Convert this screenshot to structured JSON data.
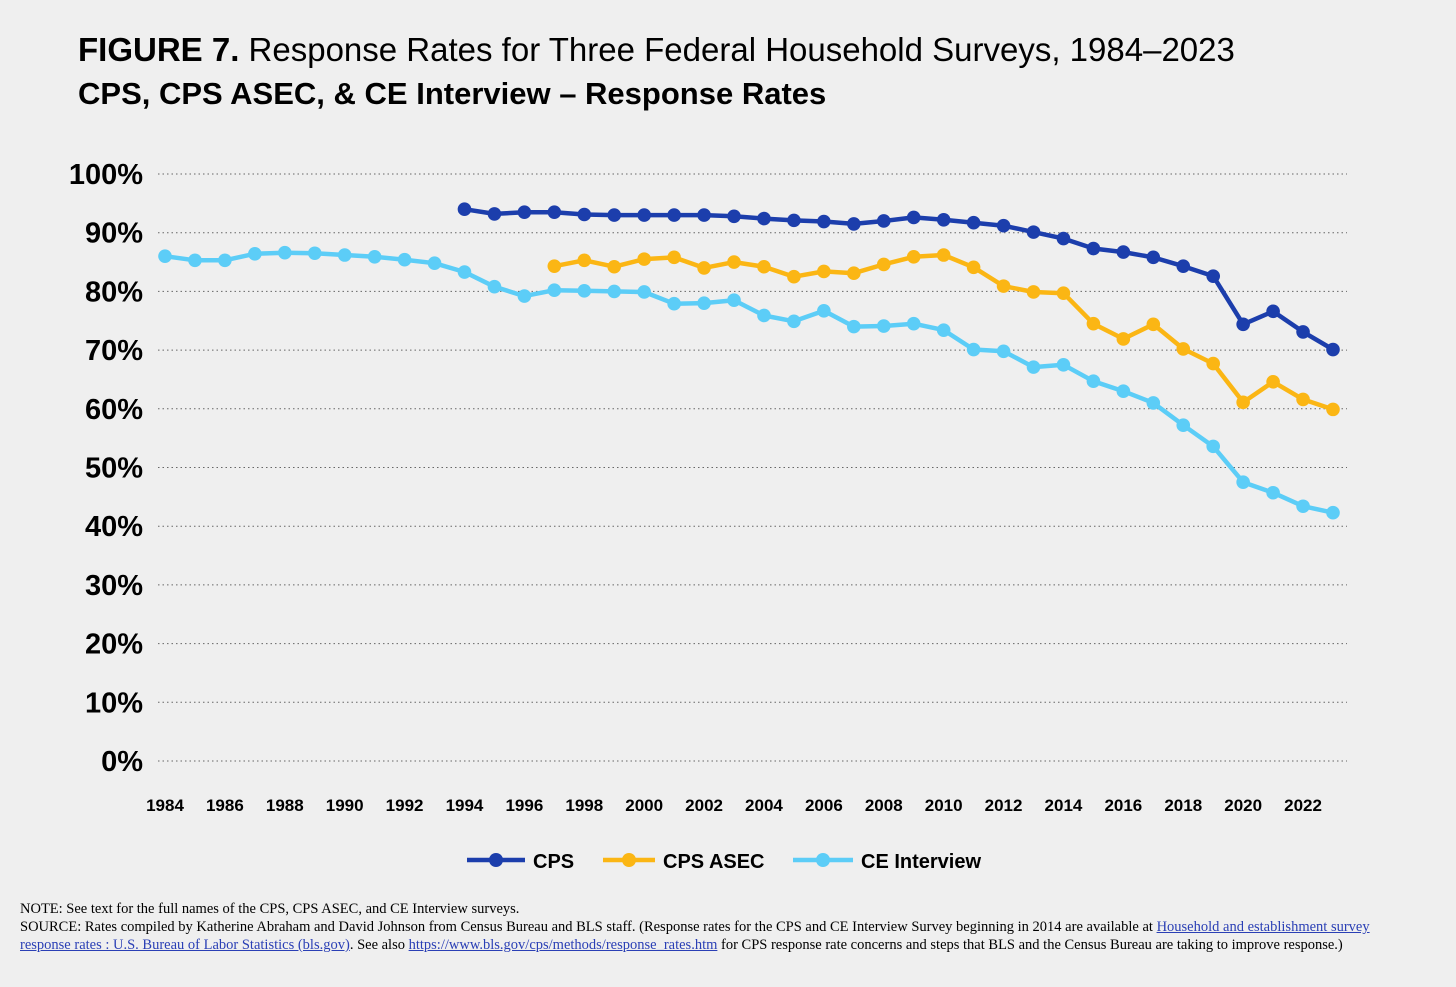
{
  "title": {
    "lead": "FIGURE 7.",
    "rest": "Response Rates for Three Federal Household Surveys, 1984–2023",
    "subtitle": "CPS, CPS ASEC, & CE Interview – Response Rates"
  },
  "notes": {
    "note": "NOTE: See text for the full names of the CPS, CPS ASEC, and CE Interview surveys.",
    "source_pre": "SOURCE: Rates compiled by Katherine Abraham and David Johnson from Census Bureau and BLS staff. (Response rates for the CPS and CE Interview Survey beginning in 2014 are available at ",
    "link1": "Household and establishment survey response rates : U.S. Bureau of Labor Statistics (bls.gov)",
    "source_mid": ". See also ",
    "link2": "https://www.bls.gov/cps/methods/response_rates.htm",
    "source_post": " for CPS response rate concerns and steps that BLS and the Census Bureau are taking to improve response.)"
  },
  "chart_data": {
    "type": "line",
    "title": "CPS, CPS ASEC, & CE Interview – Response Rates",
    "xlabel": "",
    "ylabel": "",
    "xlim": [
      1984,
      2023
    ],
    "ylim": [
      0,
      100
    ],
    "yticks": [
      "0%",
      "10%",
      "20%",
      "30%",
      "40%",
      "50%",
      "60%",
      "70%",
      "80%",
      "90%",
      "100%"
    ],
    "xticks": [
      1984,
      1986,
      1988,
      1990,
      1992,
      1994,
      1996,
      1998,
      2000,
      2002,
      2004,
      2006,
      2008,
      2010,
      2012,
      2014,
      2016,
      2018,
      2020,
      2022
    ],
    "grid": "horizontal dotted",
    "legend": "bottom-center",
    "series": [
      {
        "name": "CPS",
        "color": "#1c3eac",
        "x": [
          1994,
          1995,
          1996,
          1997,
          1998,
          1999,
          2000,
          2001,
          2002,
          2003,
          2004,
          2005,
          2006,
          2007,
          2008,
          2009,
          2010,
          2011,
          2012,
          2013,
          2014,
          2015,
          2016,
          2017,
          2018,
          2019,
          2020,
          2021,
          2022,
          2023
        ],
        "values": [
          94.0,
          93.2,
          93.5,
          93.5,
          93.1,
          93.0,
          93.0,
          93.0,
          93.0,
          92.8,
          92.4,
          92.1,
          91.9,
          91.5,
          92.0,
          92.6,
          92.2,
          91.7,
          91.2,
          90.1,
          89.0,
          87.3,
          86.7,
          85.8,
          84.3,
          82.6,
          74.4,
          76.6,
          73.1,
          70.1
        ]
      },
      {
        "name": "CPS ASEC",
        "color": "#fbb614",
        "x": [
          1997,
          1998,
          1999,
          2000,
          2001,
          2002,
          2003,
          2004,
          2005,
          2006,
          2007,
          2008,
          2009,
          2010,
          2011,
          2012,
          2013,
          2014,
          2015,
          2016,
          2017,
          2018,
          2019,
          2020,
          2021,
          2022,
          2023
        ],
        "values": [
          84.3,
          85.3,
          84.2,
          85.5,
          85.8,
          84.0,
          85.0,
          84.2,
          82.5,
          83.4,
          83.1,
          84.6,
          85.9,
          86.2,
          84.1,
          80.9,
          79.9,
          79.7,
          74.5,
          71.9,
          74.4,
          70.2,
          67.7,
          61.1,
          64.6,
          61.6,
          59.9
        ]
      },
      {
        "name": "CE Interview",
        "color": "#5ccdf7",
        "x": [
          1984,
          1985,
          1986,
          1987,
          1988,
          1989,
          1990,
          1991,
          1992,
          1993,
          1994,
          1995,
          1996,
          1997,
          1998,
          1999,
          2000,
          2001,
          2002,
          2003,
          2004,
          2005,
          2006,
          2007,
          2008,
          2009,
          2010,
          2011,
          2012,
          2013,
          2014,
          2015,
          2016,
          2017,
          2018,
          2019,
          2020,
          2021,
          2022,
          2023
        ],
        "values": [
          86.0,
          85.3,
          85.3,
          86.4,
          86.6,
          86.5,
          86.2,
          85.9,
          85.4,
          84.8,
          83.3,
          80.8,
          79.2,
          80.2,
          80.1,
          80.0,
          79.9,
          77.9,
          78.0,
          78.5,
          75.9,
          74.9,
          76.7,
          74.0,
          74.1,
          74.5,
          73.4,
          70.1,
          69.8,
          67.1,
          67.5,
          64.7,
          63.0,
          61.0,
          57.2,
          53.6,
          47.5,
          45.7,
          43.4,
          42.3
        ]
      }
    ]
  }
}
